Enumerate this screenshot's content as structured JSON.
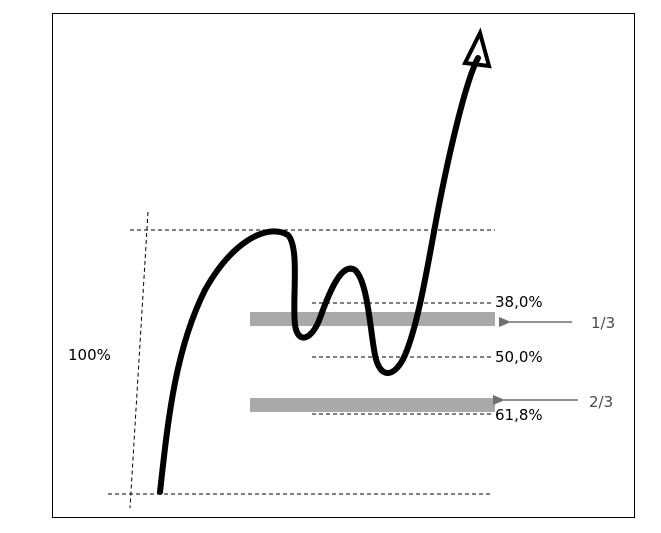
{
  "diagram": {
    "total_label": "100%",
    "levels": [
      {
        "label": "38,0%"
      },
      {
        "label": "50,0%"
      },
      {
        "label": "61,8%"
      }
    ],
    "zones": [
      {
        "label": "1/3"
      },
      {
        "label": "2/3"
      }
    ],
    "colors": {
      "line": "#000000",
      "zone_bar": "#a9a9a9",
      "arrow": "#6e6e6e",
      "dashed": "#000000"
    }
  }
}
